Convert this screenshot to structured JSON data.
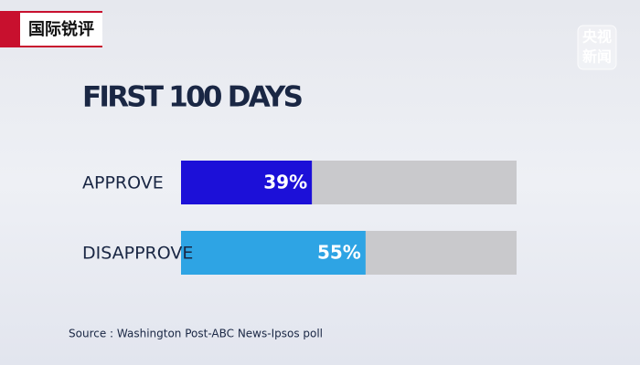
{
  "chart_data": {
    "type": "hbar",
    "title": "FIRST 100 DAYS",
    "categories": [
      "APPROVE",
      "DISAPPROVE"
    ],
    "values": [
      39,
      55
    ],
    "value_labels": [
      "39%",
      "55%"
    ],
    "colors": [
      "#1c10d8",
      "#2ea4e4"
    ],
    "track_color": "#c9c9cc",
    "xlim": [
      0,
      100
    ],
    "source": "Source : Washington Post-ABC News-Ipsos poll"
  },
  "branding": {
    "program": "国际锐评",
    "channel": [
      "央视",
      "新闻"
    ]
  }
}
